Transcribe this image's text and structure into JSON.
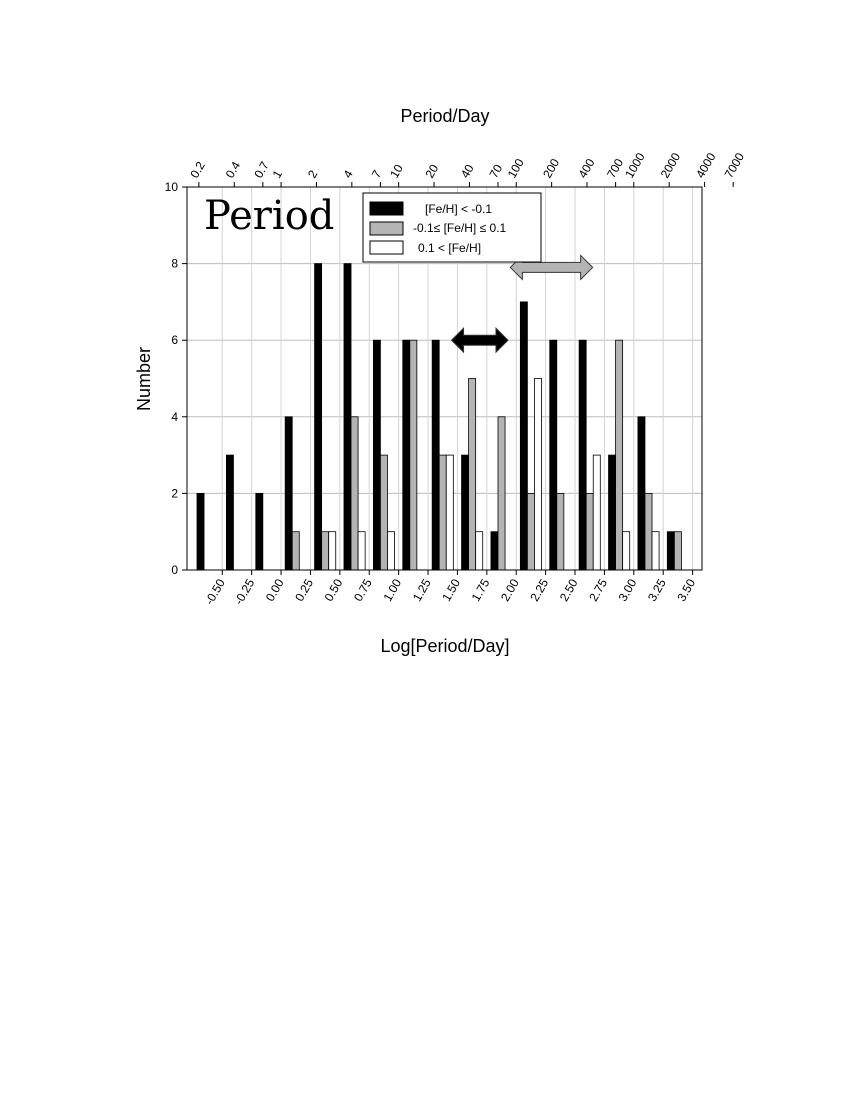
{
  "chart_data": {
    "type": "bar",
    "panel_label": "Period",
    "xlabel": "Log[Period/Day]",
    "ylabel": "Number",
    "top_xlabel": "Period/Day",
    "xlim": [
      -0.8,
      3.58
    ],
    "ylim": [
      0,
      10
    ],
    "y_ticks": [
      "0",
      "2",
      "4",
      "6",
      "8",
      "10"
    ],
    "x_ticks": [
      "-0.50",
      "-0.25",
      "0.00",
      "0.25",
      "0.50",
      "0.75",
      "1.00",
      "1.25",
      "1.50",
      "1.75",
      "2.00",
      "2.25",
      "2.50",
      "2.75",
      "3.00",
      "3.25",
      "3.50"
    ],
    "top_ticks": [
      "0.2",
      "0.4",
      "0.7",
      "1",
      "2",
      "4",
      "7",
      "10",
      "20",
      "40",
      "70",
      "100",
      "200",
      "400",
      "700",
      "1000",
      "2000",
      "4000",
      "7000"
    ],
    "grid": true,
    "legend_position": "top-center",
    "bin_centers": [
      -0.625,
      -0.375,
      -0.125,
      0.125,
      0.375,
      0.625,
      0.875,
      1.125,
      1.375,
      1.625,
      1.875,
      2.125,
      2.375,
      2.625,
      2.875,
      3.125,
      3.375
    ],
    "series": [
      {
        "name": "[Fe/H] < -0.1",
        "color": "#000000",
        "values": [
          2,
          3,
          2,
          4,
          8,
          8,
          6,
          6,
          6,
          3,
          1,
          7,
          6,
          6,
          3,
          4,
          1
        ]
      },
      {
        "name": "-0.1≤ [Fe/H] ≤ 0.1",
        "color": "#b4b4b4",
        "values": [
          0,
          0,
          0,
          1,
          1,
          4,
          3,
          6,
          3,
          5,
          4,
          2,
          2,
          2,
          6,
          2,
          1
        ]
      },
      {
        "name": "0.1 < [Fe/H]",
        "color": "#ffffff",
        "values": [
          0,
          0,
          0,
          0,
          1,
          1,
          1,
          0,
          3,
          1,
          0,
          5,
          0,
          3,
          1,
          1,
          0
        ]
      }
    ],
    "annotations": [
      {
        "type": "double-arrow",
        "color": "#000000",
        "x_range": [
          1.45,
          1.93
        ],
        "y": 6
      },
      {
        "type": "double-arrow",
        "color": "#b4b4b4",
        "x_range": [
          1.95,
          2.65
        ],
        "y": 7.9
      }
    ]
  }
}
